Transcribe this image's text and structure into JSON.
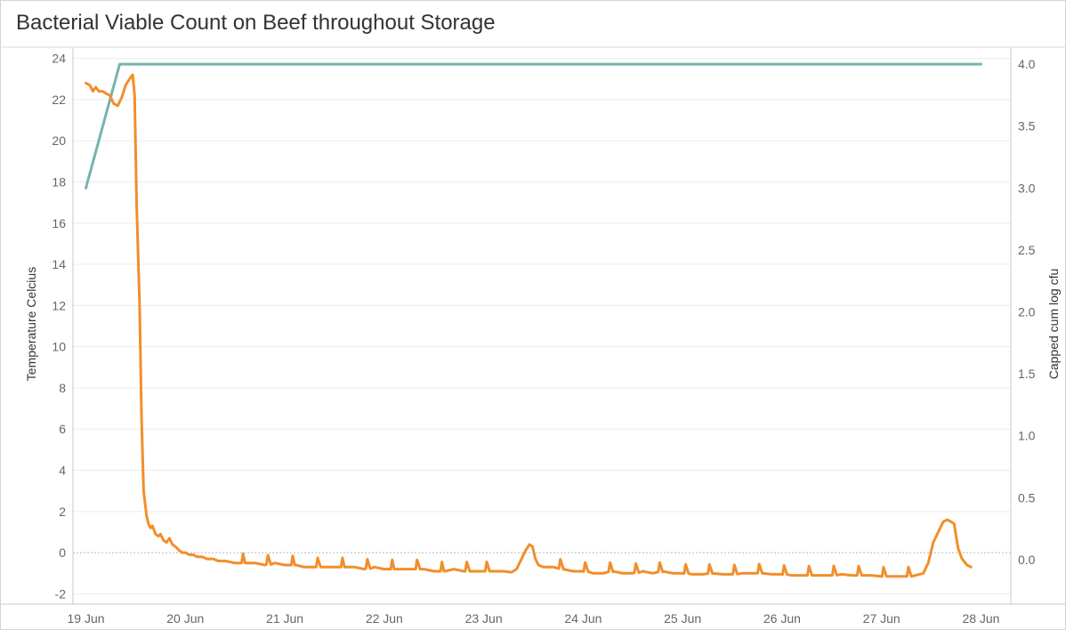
{
  "chart_data": {
    "type": "line",
    "title": "Bacterial Viable Count on Beef throughout Storage",
    "y_left_label": "Temperature Celcius",
    "y_right_label": "Capped cum log cfu",
    "xlim_days": [
      18.87,
      28.3
    ],
    "x_ticks": [
      "19 Jun",
      "20 Jun",
      "21 Jun",
      "22 Jun",
      "23 Jun",
      "24 Jun",
      "25 Jun",
      "26 Jun",
      "27 Jun",
      "28 Jun"
    ],
    "y_left_ticks": [
      "-2",
      "0",
      "2",
      "4",
      "6",
      "8",
      "10",
      "12",
      "14",
      "16",
      "18",
      "20",
      "22",
      "24"
    ],
    "y_left_range": [
      -2.5,
      24.5
    ],
    "y_right_ticks": [
      "0.0",
      "0.5",
      "1.0",
      "1.5",
      "2.0",
      "2.5",
      "3.0",
      "3.5",
      "4.0"
    ],
    "y_right_range": [
      -0.36,
      4.13
    ],
    "grid": true,
    "zero_line": "dotted",
    "series": [
      {
        "axis": "right",
        "color": "#76b3ae",
        "points": [
          [
            19.0,
            3.0
          ],
          [
            19.34,
            4.0
          ],
          [
            28.0,
            4.0
          ]
        ]
      },
      {
        "axis": "left",
        "color": "#f28e2b",
        "points": [
          [
            19.0,
            22.8
          ],
          [
            19.04,
            22.7
          ],
          [
            19.07,
            22.4
          ],
          [
            19.1,
            22.6
          ],
          [
            19.13,
            22.4
          ],
          [
            19.17,
            22.4
          ],
          [
            19.2,
            22.3
          ],
          [
            19.24,
            22.2
          ],
          [
            19.28,
            21.8
          ],
          [
            19.32,
            21.7
          ],
          [
            19.36,
            22.1
          ],
          [
            19.4,
            22.7
          ],
          [
            19.44,
            23.0
          ],
          [
            19.47,
            23.2
          ],
          [
            19.49,
            22.2
          ],
          [
            19.51,
            17.0
          ],
          [
            19.54,
            12.0
          ],
          [
            19.56,
            6.5
          ],
          [
            19.58,
            3.0
          ],
          [
            19.61,
            1.8
          ],
          [
            19.63,
            1.4
          ],
          [
            19.65,
            1.2
          ],
          [
            19.67,
            1.3
          ],
          [
            19.7,
            0.9
          ],
          [
            19.73,
            0.8
          ],
          [
            19.75,
            0.9
          ],
          [
            19.78,
            0.6
          ],
          [
            19.81,
            0.5
          ],
          [
            19.84,
            0.7
          ],
          [
            19.87,
            0.4
          ],
          [
            19.9,
            0.3
          ],
          [
            19.94,
            0.1
          ],
          [
            19.97,
            0.0
          ],
          [
            20.0,
            0.0
          ],
          [
            20.04,
            -0.1
          ],
          [
            20.08,
            -0.1
          ],
          [
            20.12,
            -0.2
          ],
          [
            20.17,
            -0.2
          ],
          [
            20.22,
            -0.3
          ],
          [
            20.28,
            -0.3
          ],
          [
            20.33,
            -0.4
          ],
          [
            20.4,
            -0.4
          ],
          [
            20.5,
            -0.5
          ],
          [
            20.6,
            -0.5
          ],
          [
            20.7,
            -0.5
          ],
          [
            20.8,
            -0.6
          ],
          [
            20.9,
            -0.5
          ],
          [
            21.0,
            -0.6
          ],
          [
            21.1,
            -0.6
          ],
          [
            21.2,
            -0.7
          ],
          [
            21.3,
            -0.7
          ],
          [
            21.4,
            -0.7
          ],
          [
            21.5,
            -0.7
          ],
          [
            21.6,
            -0.7
          ],
          [
            21.7,
            -0.7
          ],
          [
            21.8,
            -0.8
          ],
          [
            21.9,
            -0.7
          ],
          [
            22.0,
            -0.8
          ],
          [
            22.1,
            -0.8
          ],
          [
            22.2,
            -0.8
          ],
          [
            22.3,
            -0.8
          ],
          [
            22.4,
            -0.8
          ],
          [
            22.5,
            -0.9
          ],
          [
            22.6,
            -0.9
          ],
          [
            22.7,
            -0.8
          ],
          [
            22.8,
            -0.9
          ],
          [
            22.9,
            -0.9
          ],
          [
            23.0,
            -0.9
          ],
          [
            23.1,
            -0.9
          ],
          [
            23.2,
            -0.9
          ],
          [
            23.28,
            -0.95
          ],
          [
            23.33,
            -0.8
          ],
          [
            23.38,
            -0.3
          ],
          [
            23.42,
            0.1
          ],
          [
            23.46,
            0.4
          ],
          [
            23.49,
            0.3
          ],
          [
            23.52,
            -0.3
          ],
          [
            23.55,
            -0.6
          ],
          [
            23.6,
            -0.7
          ],
          [
            23.7,
            -0.7
          ],
          [
            23.8,
            -0.8
          ],
          [
            23.9,
            -0.9
          ],
          [
            24.0,
            -0.9
          ],
          [
            24.1,
            -1.0
          ],
          [
            24.2,
            -1.0
          ],
          [
            24.3,
            -0.9
          ],
          [
            24.4,
            -1.0
          ],
          [
            24.5,
            -1.0
          ],
          [
            24.6,
            -0.9
          ],
          [
            24.7,
            -1.0
          ],
          [
            24.8,
            -0.9
          ],
          [
            24.9,
            -1.0
          ],
          [
            25.0,
            -1.0
          ],
          [
            25.1,
            -1.05
          ],
          [
            25.2,
            -1.05
          ],
          [
            25.3,
            -1.0
          ],
          [
            25.4,
            -1.05
          ],
          [
            25.5,
            -1.05
          ],
          [
            25.6,
            -1.0
          ],
          [
            25.7,
            -1.0
          ],
          [
            25.8,
            -1.0
          ],
          [
            25.9,
            -1.05
          ],
          [
            26.0,
            -1.05
          ],
          [
            26.1,
            -1.1
          ],
          [
            26.2,
            -1.1
          ],
          [
            26.3,
            -1.1
          ],
          [
            26.4,
            -1.1
          ],
          [
            26.5,
            -1.1
          ],
          [
            26.6,
            -1.05
          ],
          [
            26.7,
            -1.1
          ],
          [
            26.8,
            -1.1
          ],
          [
            26.9,
            -1.1
          ],
          [
            27.0,
            -1.15
          ],
          [
            27.1,
            -1.15
          ],
          [
            27.2,
            -1.15
          ],
          [
            27.3,
            -1.15
          ],
          [
            27.38,
            -1.05
          ],
          [
            27.42,
            -1.0
          ],
          [
            27.47,
            -0.5
          ],
          [
            27.52,
            0.5
          ],
          [
            27.57,
            1.0
          ],
          [
            27.62,
            1.5
          ],
          [
            27.66,
            1.6
          ],
          [
            27.7,
            1.5
          ],
          [
            27.73,
            1.4
          ],
          [
            27.77,
            0.2
          ],
          [
            27.81,
            -0.3
          ],
          [
            27.86,
            -0.6
          ],
          [
            27.9,
            -0.7
          ]
        ],
        "spikes_days": [
          19.68,
          19.8,
          19.9,
          20.08,
          20.33,
          20.58,
          20.83,
          21.08,
          21.33,
          21.58,
          21.83,
          22.08,
          22.33,
          22.58,
          22.83,
          23.03,
          23.28,
          23.77,
          24.02,
          24.27,
          24.53,
          24.77,
          25.03,
          25.27,
          25.52,
          25.77,
          26.02,
          26.27,
          26.52,
          26.77,
          27.02,
          27.27
        ]
      }
    ]
  }
}
